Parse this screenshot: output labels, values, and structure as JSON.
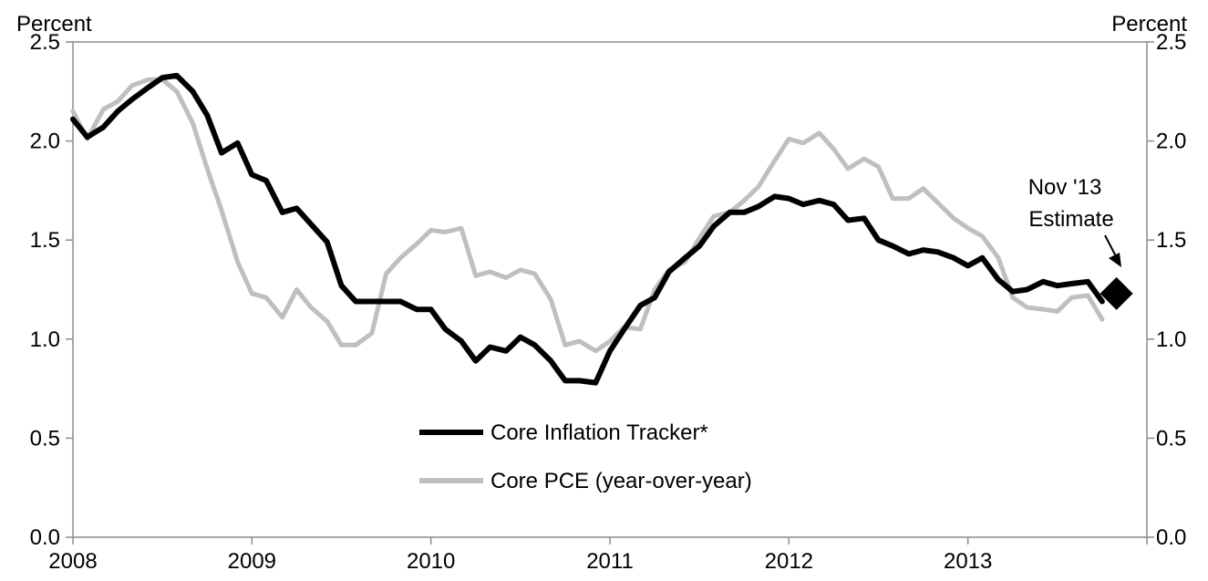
{
  "chart_data": {
    "type": "line",
    "left_axis_label": "Percent",
    "right_axis_label": "Percent",
    "ylim": [
      0,
      2.5
    ],
    "y_ticks": [
      "0.0",
      "0.5",
      "1.0",
      "1.5",
      "2.0",
      "2.5"
    ],
    "x_ticks": [
      "2008",
      "2009",
      "2010",
      "2011",
      "2012",
      "2013"
    ],
    "x_tick_values": [
      2008,
      2009,
      2010,
      2011,
      2012,
      2013
    ],
    "xlim": [
      2008,
      2014
    ],
    "grid": false,
    "legend_position": "bottom-center",
    "series": [
      {
        "name": "Core Inflation Tracker*",
        "color": "#000000",
        "x": [
          2008.0,
          2008.08,
          2008.17,
          2008.25,
          2008.33,
          2008.42,
          2008.5,
          2008.58,
          2008.67,
          2008.75,
          2008.83,
          2008.92,
          2009.0,
          2009.08,
          2009.17,
          2009.25,
          2009.33,
          2009.42,
          2009.5,
          2009.58,
          2009.67,
          2009.75,
          2009.83,
          2009.92,
          2010.0,
          2010.08,
          2010.17,
          2010.25,
          2010.33,
          2010.42,
          2010.5,
          2010.58,
          2010.67,
          2010.75,
          2010.83,
          2010.92,
          2011.0,
          2011.08,
          2011.17,
          2011.25,
          2011.33,
          2011.42,
          2011.5,
          2011.58,
          2011.67,
          2011.75,
          2011.83,
          2011.92,
          2012.0,
          2012.08,
          2012.17,
          2012.25,
          2012.33,
          2012.42,
          2012.5,
          2012.58,
          2012.67,
          2012.75,
          2012.83,
          2012.92,
          2013.0,
          2013.08,
          2013.17,
          2013.25,
          2013.33,
          2013.42,
          2013.5,
          2013.58,
          2013.67,
          2013.75
        ],
        "y": [
          2.11,
          2.02,
          2.07,
          2.15,
          2.21,
          2.27,
          2.32,
          2.33,
          2.25,
          2.13,
          1.94,
          1.99,
          1.83,
          1.8,
          1.64,
          1.66,
          1.58,
          1.49,
          1.27,
          1.19,
          1.19,
          1.19,
          1.19,
          1.15,
          1.15,
          1.05,
          0.99,
          0.89,
          0.96,
          0.94,
          1.01,
          0.97,
          0.89,
          0.79,
          0.79,
          0.78,
          0.94,
          1.05,
          1.17,
          1.21,
          1.34,
          1.41,
          1.47,
          1.57,
          1.64,
          1.64,
          1.67,
          1.72,
          1.71,
          1.68,
          1.7,
          1.68,
          1.6,
          1.61,
          1.5,
          1.47,
          1.43,
          1.45,
          1.44,
          1.41,
          1.37,
          1.41,
          1.3,
          1.24,
          1.25,
          1.29,
          1.27,
          1.28,
          1.29,
          1.19
        ]
      },
      {
        "name": "Core PCE (year-over-year)",
        "color": "#bfbfbf",
        "x": [
          2008.0,
          2008.08,
          2008.17,
          2008.25,
          2008.33,
          2008.42,
          2008.5,
          2008.58,
          2008.67,
          2008.75,
          2008.83,
          2008.92,
          2009.0,
          2009.08,
          2009.17,
          2009.25,
          2009.33,
          2009.42,
          2009.5,
          2009.58,
          2009.67,
          2009.75,
          2009.83,
          2009.92,
          2010.0,
          2010.08,
          2010.17,
          2010.25,
          2010.33,
          2010.42,
          2010.5,
          2010.58,
          2010.67,
          2010.75,
          2010.83,
          2010.92,
          2011.0,
          2011.08,
          2011.17,
          2011.25,
          2011.33,
          2011.42,
          2011.5,
          2011.58,
          2011.67,
          2011.75,
          2011.83,
          2011.92,
          2012.0,
          2012.08,
          2012.17,
          2012.25,
          2012.33,
          2012.42,
          2012.5,
          2012.58,
          2012.67,
          2012.75,
          2012.83,
          2012.92,
          2013.0,
          2013.08,
          2013.17,
          2013.25,
          2013.33,
          2013.42,
          2013.5,
          2013.58,
          2013.67,
          2013.75
        ],
        "y": [
          2.15,
          2.01,
          2.16,
          2.2,
          2.28,
          2.31,
          2.31,
          2.25,
          2.09,
          1.86,
          1.65,
          1.39,
          1.23,
          1.21,
          1.11,
          1.25,
          1.16,
          1.09,
          0.97,
          0.97,
          1.03,
          1.33,
          1.41,
          1.48,
          1.55,
          1.54,
          1.56,
          1.32,
          1.34,
          1.31,
          1.35,
          1.33,
          1.2,
          0.97,
          0.99,
          0.94,
          0.99,
          1.06,
          1.05,
          1.25,
          1.35,
          1.39,
          1.51,
          1.62,
          1.64,
          1.7,
          1.77,
          1.9,
          2.01,
          1.99,
          2.04,
          1.96,
          1.86,
          1.91,
          1.87,
          1.71,
          1.71,
          1.76,
          1.69,
          1.61,
          1.56,
          1.52,
          1.41,
          1.21,
          1.16,
          1.15,
          1.14,
          1.21,
          1.22,
          1.1
        ]
      }
    ],
    "estimate": {
      "x": 2013.83,
      "y": 1.23,
      "color": "#000000"
    },
    "annotation": {
      "line1": "Nov '13",
      "line2": "Estimate"
    }
  }
}
